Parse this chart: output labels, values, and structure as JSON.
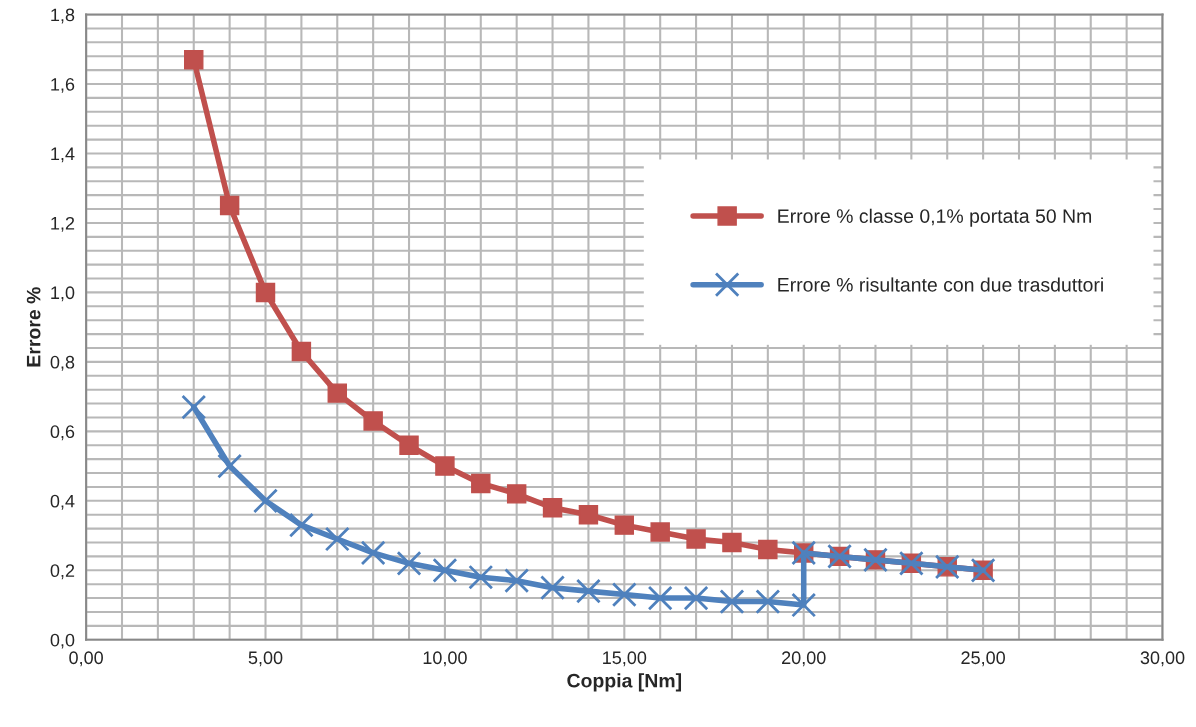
{
  "chart_data": {
    "type": "line",
    "xlabel": "Coppia [Nm]",
    "ylabel": "Errore %",
    "xlim": [
      0,
      30
    ],
    "ylim": [
      0,
      1.8
    ],
    "xticks": [
      {
        "value": 0,
        "label": "0,00"
      },
      {
        "value": 1,
        "label": null
      },
      {
        "value": 2,
        "label": null
      },
      {
        "value": 3,
        "label": null
      },
      {
        "value": 4,
        "label": null
      },
      {
        "value": 5,
        "label": "5,00"
      },
      {
        "value": 6,
        "label": null
      },
      {
        "value": 7,
        "label": null
      },
      {
        "value": 8,
        "label": null
      },
      {
        "value": 9,
        "label": null
      },
      {
        "value": 10,
        "label": "10,00"
      },
      {
        "value": 11,
        "label": null
      },
      {
        "value": 12,
        "label": null
      },
      {
        "value": 13,
        "label": null
      },
      {
        "value": 14,
        "label": null
      },
      {
        "value": 15,
        "label": "15,00"
      },
      {
        "value": 16,
        "label": null
      },
      {
        "value": 17,
        "label": null
      },
      {
        "value": 18,
        "label": null
      },
      {
        "value": 19,
        "label": null
      },
      {
        "value": 20,
        "label": "20,00"
      },
      {
        "value": 21,
        "label": null
      },
      {
        "value": 22,
        "label": null
      },
      {
        "value": 23,
        "label": null
      },
      {
        "value": 24,
        "label": null
      },
      {
        "value": 25,
        "label": "25,00"
      },
      {
        "value": 26,
        "label": null
      },
      {
        "value": 27,
        "label": null
      },
      {
        "value": 28,
        "label": null
      },
      {
        "value": 29,
        "label": null
      },
      {
        "value": 30,
        "label": "30,00"
      }
    ],
    "yticks": [
      {
        "value": 0,
        "label": "0,0"
      },
      {
        "value": 0.04,
        "label": null
      },
      {
        "value": 0.08,
        "label": null
      },
      {
        "value": 0.12,
        "label": null
      },
      {
        "value": 0.16,
        "label": null
      },
      {
        "value": 0.2,
        "label": "0,2"
      },
      {
        "value": 0.24,
        "label": null
      },
      {
        "value": 0.28,
        "label": null
      },
      {
        "value": 0.32,
        "label": null
      },
      {
        "value": 0.36,
        "label": null
      },
      {
        "value": 0.4,
        "label": "0,4"
      },
      {
        "value": 0.44,
        "label": null
      },
      {
        "value": 0.48,
        "label": null
      },
      {
        "value": 0.52,
        "label": null
      },
      {
        "value": 0.56,
        "label": null
      },
      {
        "value": 0.6,
        "label": "0,6"
      },
      {
        "value": 0.64,
        "label": null
      },
      {
        "value": 0.68,
        "label": null
      },
      {
        "value": 0.72,
        "label": null
      },
      {
        "value": 0.76,
        "label": null
      },
      {
        "value": 0.8,
        "label": "0,8"
      },
      {
        "value": 0.84,
        "label": null
      },
      {
        "value": 0.88,
        "label": null
      },
      {
        "value": 0.92,
        "label": null
      },
      {
        "value": 0.96,
        "label": null
      },
      {
        "value": 1.0,
        "label": "1,0"
      },
      {
        "value": 1.04,
        "label": null
      },
      {
        "value": 1.08,
        "label": null
      },
      {
        "value": 1.12,
        "label": null
      },
      {
        "value": 1.16,
        "label": null
      },
      {
        "value": 1.2,
        "label": "1,2"
      },
      {
        "value": 1.24,
        "label": null
      },
      {
        "value": 1.28,
        "label": null
      },
      {
        "value": 1.32,
        "label": null
      },
      {
        "value": 1.36,
        "label": null
      },
      {
        "value": 1.4,
        "label": "1,4"
      },
      {
        "value": 1.44,
        "label": null
      },
      {
        "value": 1.48,
        "label": null
      },
      {
        "value": 1.52,
        "label": null
      },
      {
        "value": 1.56,
        "label": null
      },
      {
        "value": 1.6,
        "label": "1,6"
      },
      {
        "value": 1.64,
        "label": null
      },
      {
        "value": 1.68,
        "label": null
      },
      {
        "value": 1.72,
        "label": null
      },
      {
        "value": 1.76,
        "label": null
      },
      {
        "value": 1.8,
        "label": "1,8"
      }
    ],
    "grid": true,
    "legend": "right",
    "line_style": "solid",
    "series": [
      {
        "name": "Errore % classe 0,1% portata 50 Nm",
        "color": "#c0504d",
        "marker": "square",
        "x": [
          3,
          4,
          5,
          6,
          7,
          8,
          9,
          10,
          11,
          12,
          13,
          14,
          15,
          16,
          17,
          18,
          19,
          20,
          21,
          22,
          23,
          24,
          25
        ],
        "values": [
          1.67,
          1.25,
          1.0,
          0.83,
          0.71,
          0.63,
          0.56,
          0.5,
          0.45,
          0.42,
          0.38,
          0.36,
          0.33,
          0.31,
          0.29,
          0.28,
          0.26,
          0.25,
          0.24,
          0.23,
          0.22,
          0.21,
          0.2
        ]
      },
      {
        "name": "Errore % risultante con due trasduttori",
        "color": "#4f81bd",
        "marker": "cross",
        "x": [
          3,
          4,
          5,
          6,
          7,
          8,
          9,
          10,
          11,
          12,
          13,
          14,
          15,
          16,
          17,
          18,
          19,
          20,
          20,
          21,
          22,
          23,
          24,
          25
        ],
        "values": [
          0.67,
          0.5,
          0.4,
          0.33,
          0.29,
          0.25,
          0.22,
          0.2,
          0.18,
          0.17,
          0.15,
          0.14,
          0.13,
          0.12,
          0.12,
          0.11,
          0.11,
          0.1,
          0.25,
          0.24,
          0.23,
          0.22,
          0.21,
          0.2
        ]
      }
    ]
  }
}
